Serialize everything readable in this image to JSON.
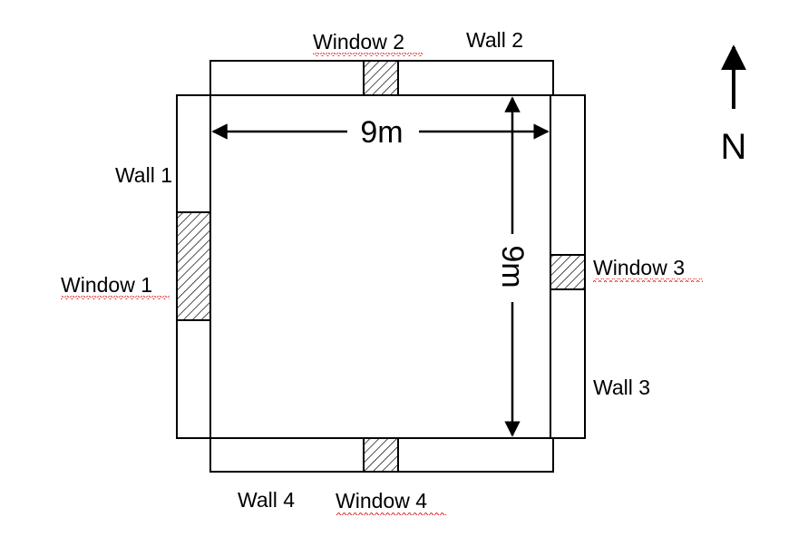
{
  "labels": {
    "wall_1": "Wall 1",
    "wall_2": "Wall 2",
    "wall_3": "Wall 3",
    "wall_4": "Wall 4",
    "window_1": "Window 1",
    "window_2": "Window 2",
    "window_3": "Window 3",
    "window_4": "Window 4"
  },
  "dimensions": {
    "width": "9m",
    "height": "9m"
  },
  "compass": {
    "label": "N",
    "direction": "north"
  },
  "colors": {
    "stroke": "#000000",
    "spellcheck_underline": "#e02020",
    "background": "#ffffff"
  }
}
